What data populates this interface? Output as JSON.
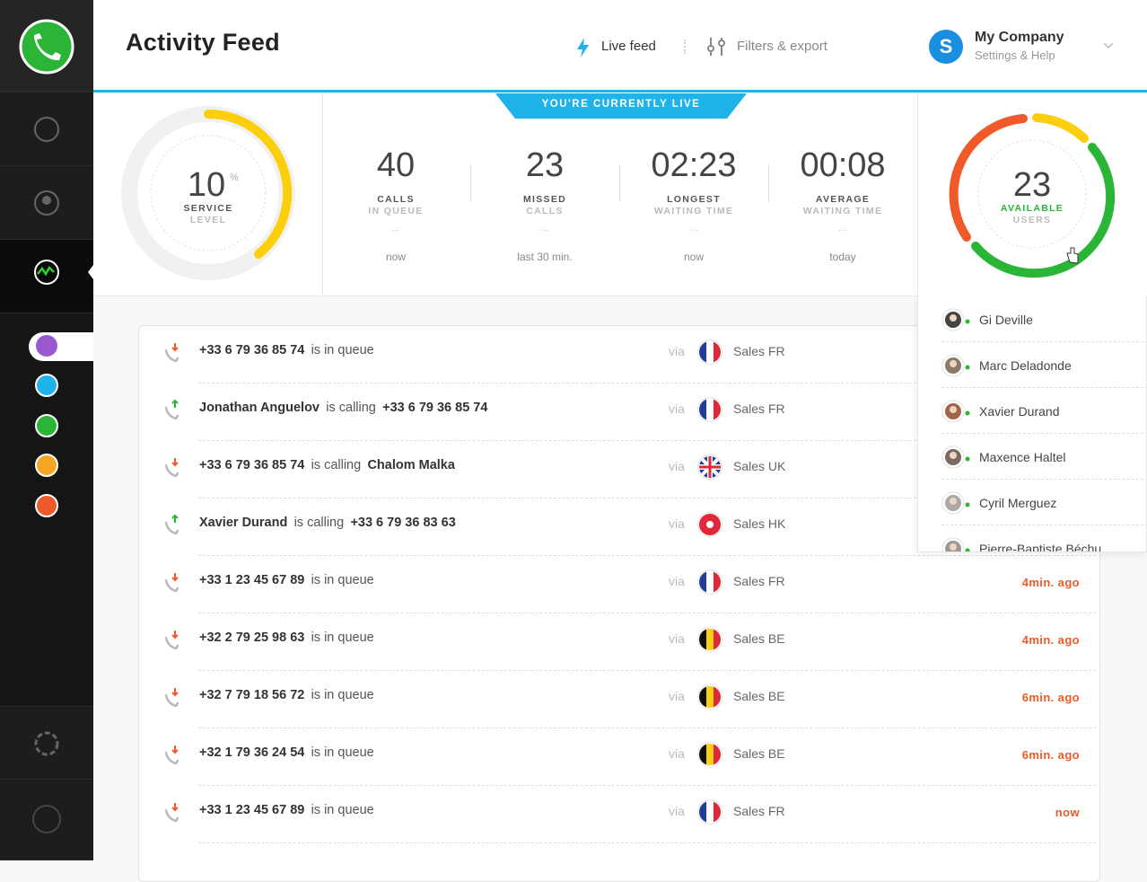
{
  "header": {
    "title": "Activity Feed",
    "nav": [
      "Live feed",
      "Filters & export"
    ],
    "company": {
      "initial": "S",
      "name": "My Company",
      "sub": "Settings & Help"
    }
  },
  "banner": "YOU'RE CURRENTLY LIVE",
  "service": {
    "value": 10,
    "unit": "%",
    "label": "SERVICE",
    "sub": "LEVEL"
  },
  "stats": [
    {
      "value": 40,
      "label": "CALLS",
      "sub": "IN QUEUE",
      "dots": "...",
      "period": "now"
    },
    {
      "value": 23,
      "label": "MISSED",
      "sub": "CALLS",
      "dots": "...",
      "period": "last 30 min."
    },
    {
      "value": "02:23",
      "label": "LONGEST",
      "sub": "WAITING TIME",
      "dots": "...",
      "period": "now"
    },
    {
      "value": "00:08",
      "label": "AVERAGE",
      "sub": "WAITING TIME",
      "dots": "...",
      "period": "today"
    }
  ],
  "available": {
    "value": 23,
    "label": "AVAILABLE",
    "sub": "USERS"
  },
  "users": [
    "Gi Deville",
    "Marc Deladonde",
    "Xavier Durand",
    "Maxence Haltel",
    "Cyril Merguez",
    "Pierre-Baptiste Béchu"
  ],
  "via": "via",
  "feed": [
    {
      "from": "+33 6 79 36 85 74",
      "action": "is in queue",
      "line": "Sales FR",
      "flag": "fr",
      "direction": "in"
    },
    {
      "from": "Jonathan Anguelov",
      "action": "is calling",
      "to": "+33 6 79 36 85 74",
      "line": "Sales FR",
      "flag": "fr",
      "direction": "out"
    },
    {
      "from": "+33 6 79 36 85 74",
      "action": "is calling",
      "to": "Chalom Malka",
      "line": "Sales UK",
      "flag": "uk",
      "direction": "in"
    },
    {
      "from": "Xavier Durand",
      "action": "is calling",
      "to": "+33 6 79 36 83 63",
      "line": "Sales HK",
      "flag": "hk",
      "direction": "out"
    },
    {
      "from": "+33 1 23 45 67 89",
      "action": "is in queue",
      "line": "Sales FR",
      "flag": "fr",
      "direction": "in",
      "time": "4min. ago"
    },
    {
      "from": "+32 2 79 25 98 63",
      "action": "is in queue",
      "line": "Sales BE",
      "flag": "be",
      "direction": "in",
      "time": "4min. ago"
    },
    {
      "from": "+32 7 79 18 56 72",
      "action": "is in queue",
      "line": "Sales BE",
      "flag": "be",
      "direction": "in",
      "time": "6min. ago"
    },
    {
      "from": "+32 1 79 36 24 54",
      "action": "is in queue",
      "line": "Sales BE",
      "flag": "be",
      "direction": "in",
      "time": "6min. ago"
    },
    {
      "from": "+33 1 23 45 67 89",
      "action": "is in queue",
      "line": "Sales FR",
      "flag": "fr",
      "direction": "in",
      "time": "now"
    }
  ]
}
